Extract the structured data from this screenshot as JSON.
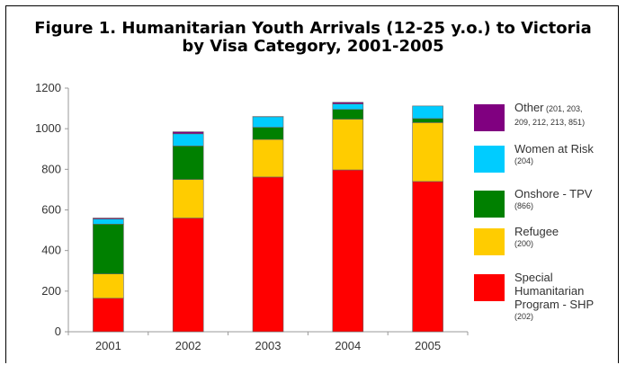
{
  "chart_data": {
    "type": "bar",
    "stacked": true,
    "title": "Figure 1. Humanitarian Youth Arrivals (12-25 y.o.) to Victoria by Visa Category, 2001-2005",
    "title_lines": [
      "Figure 1. Humanitarian Youth Arrivals (12-25 y.o.) to Victoria",
      "by Visa Category, 2001-2005"
    ],
    "categories": [
      "2001",
      "2002",
      "2003",
      "2004",
      "2005"
    ],
    "yticks": [
      "0",
      "200",
      "400",
      "600",
      "800",
      "1000",
      "1200"
    ],
    "ylim": [
      0,
      1200
    ],
    "xlabel": "",
    "ylabel": "",
    "grid": false,
    "legend_position": "right",
    "series": [
      {
        "name": "Special Humanitarian Program - SHP",
        "legend_lines": [
          "Special",
          "Humanitarian",
          "Program - SHP"
        ],
        "legend_code": "(202)",
        "color": "#ff0000",
        "values": [
          165,
          560,
          762,
          797,
          740
        ]
      },
      {
        "name": "Refugee",
        "legend_lines": [
          "Refugee"
        ],
        "legend_code": "(200)",
        "color": "#ffcc00",
        "values": [
          120,
          190,
          185,
          250,
          290
        ]
      },
      {
        "name": "Onshore - TPV",
        "legend_lines": [
          "Onshore - TPV"
        ],
        "legend_code": "(866)",
        "color": "#008000",
        "values": [
          245,
          165,
          60,
          48,
          20
        ]
      },
      {
        "name": "Women at Risk",
        "legend_lines": [
          "Women at Risk"
        ],
        "legend_code": "(204)",
        "color": "#00ccff",
        "values": [
          25,
          60,
          52,
          27,
          62
        ]
      },
      {
        "name": "Other",
        "legend_lines": [
          "Other (201, 203,",
          "209, 212, 213, 851)"
        ],
        "legend_code": "",
        "color": "#800080",
        "values": [
          5,
          10,
          1,
          8,
          0
        ]
      }
    ]
  }
}
